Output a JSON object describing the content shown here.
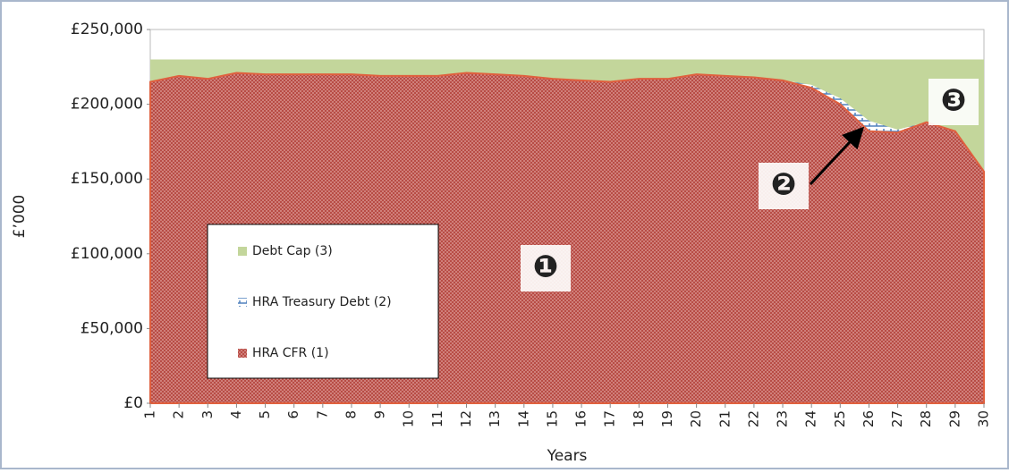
{
  "chart_data": {
    "type": "area",
    "ylabel": "£’000",
    "xlabel": "Years",
    "categories": [
      "1",
      "2",
      "3",
      "4",
      "5",
      "6",
      "7",
      "8",
      "9",
      "10",
      "11",
      "12",
      "13",
      "14",
      "15",
      "16",
      "17",
      "18",
      "19",
      "20",
      "21",
      "22",
      "23",
      "24",
      "25",
      "26",
      "27",
      "28",
      "29",
      "30"
    ],
    "series": [
      {
        "name": "Debt Cap (3)",
        "color": "#c3d69b",
        "values": [
          230000,
          230000,
          230000,
          230000,
          230000,
          230000,
          230000,
          230000,
          230000,
          230000,
          230000,
          230000,
          230000,
          230000,
          230000,
          230000,
          230000,
          230000,
          230000,
          230000,
          230000,
          230000,
          230000,
          230000,
          230000,
          230000,
          230000,
          230000,
          230000,
          230000
        ]
      },
      {
        "name": "HRA Treasury Debt (2)",
        "color": "#4f81bd",
        "values": [
          215000,
          219000,
          217000,
          221000,
          220000,
          220000,
          220000,
          220000,
          219000,
          219000,
          219000,
          221000,
          220000,
          219000,
          217000,
          216000,
          215000,
          217000,
          217000,
          220000,
          219000,
          218000,
          216000,
          213000,
          204000,
          189000,
          183000,
          188000,
          182000,
          155000
        ]
      },
      {
        "name": "HRA CFR (1)",
        "color": "#c0504d",
        "values": [
          215000,
          219000,
          217000,
          221000,
          220000,
          220000,
          220000,
          220000,
          219000,
          219000,
          219000,
          221000,
          220000,
          219000,
          217000,
          216000,
          215000,
          217000,
          217000,
          220000,
          219000,
          218000,
          216000,
          211000,
          200000,
          182000,
          181000,
          188000,
          182000,
          155000
        ]
      }
    ],
    "ylim": [
      0,
      250000
    ],
    "yticks": [
      {
        "value": 0,
        "label": "£0"
      },
      {
        "value": 50000,
        "label": "£50,000"
      },
      {
        "value": 100000,
        "label": "£100,000"
      },
      {
        "value": 150000,
        "label": "£150,000"
      },
      {
        "value": 200000,
        "label": "£200,000"
      },
      {
        "value": 250000,
        "label": "£250,000"
      }
    ],
    "legend_position": "lower left",
    "annotations": [
      "❶",
      "❷",
      "❸"
    ]
  }
}
